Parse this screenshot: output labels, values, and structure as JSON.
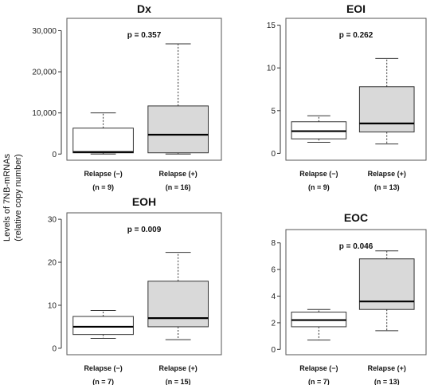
{
  "y_label": [
    "Levels of 7NB-mRNAs",
    "(relative copy number)"
  ],
  "chart_data": [
    {
      "type": "box",
      "title": "Dx",
      "p_value": "p = 0.357",
      "ylim": [
        -1500,
        33000
      ],
      "yticks": [
        0,
        10000,
        20000,
        30000
      ],
      "ytick_labels": [
        "0",
        "10,000",
        "20,000",
        "30,000"
      ],
      "groups": [
        {
          "label": "Relapse (−)",
          "n_label": "(n = 9)",
          "fill": "#ffffff",
          "min": 0,
          "q1": 300,
          "median": 500,
          "q3": 6300,
          "max": 10000
        },
        {
          "label": "Relapse (+)",
          "n_label": "(n = 16)",
          "fill": "#d9d9d9",
          "min": 0,
          "q1": 300,
          "median": 4700,
          "q3": 11700,
          "max": 26800
        }
      ]
    },
    {
      "type": "box",
      "title": "EOI",
      "p_value": "p = 0.262",
      "ylim": [
        -0.8,
        15.8
      ],
      "yticks": [
        0,
        5,
        10,
        15
      ],
      "ytick_labels": [
        "0",
        "5",
        "10",
        "15"
      ],
      "groups": [
        {
          "label": "Relapse (−)",
          "n_label": "(n = 9)",
          "fill": "#ffffff",
          "min": 1.3,
          "q1": 1.7,
          "median": 2.6,
          "q3": 3.7,
          "max": 4.4
        },
        {
          "label": "Relapse (+)",
          "n_label": "(n = 13)",
          "fill": "#d9d9d9",
          "min": 1.1,
          "q1": 2.5,
          "median": 3.5,
          "q3": 7.8,
          "max": 11.1
        }
      ]
    },
    {
      "type": "box",
      "title": "EOH",
      "p_value": "p = 0.009",
      "ylim": [
        -1.5,
        31.5
      ],
      "yticks": [
        0,
        10,
        20,
        30
      ],
      "ytick_labels": [
        "0",
        "10",
        "20",
        "30"
      ],
      "groups": [
        {
          "label": "Relapse (−)",
          "n_label": "(n = 7)",
          "fill": "#ffffff",
          "min": 2.3,
          "q1": 3.2,
          "median": 5.0,
          "q3": 7.4,
          "max": 8.8
        },
        {
          "label": "Relapse (+)",
          "n_label": "(n = 15)",
          "fill": "#d9d9d9",
          "min": 2.0,
          "q1": 5.0,
          "median": 7.0,
          "q3": 15.6,
          "max": 22.3
        }
      ]
    },
    {
      "type": "box",
      "title": "EOC",
      "p_value": "p = 0.046",
      "ylim": [
        -0.4,
        9.0
      ],
      "yticks": [
        0,
        2,
        4,
        6,
        8
      ],
      "ytick_labels": [
        "0",
        "2",
        "4",
        "6",
        "8"
      ],
      "groups": [
        {
          "label": "Relapse (−)",
          "n_label": "(n = 7)",
          "fill": "#ffffff",
          "min": 0.7,
          "q1": 1.7,
          "median": 2.2,
          "q3": 2.8,
          "max": 3.0
        },
        {
          "label": "Relapse (+)",
          "n_label": "(n = 13)",
          "fill": "#d9d9d9",
          "min": 1.4,
          "q1": 3.0,
          "median": 3.6,
          "q3": 6.8,
          "max": 7.4
        }
      ]
    }
  ]
}
